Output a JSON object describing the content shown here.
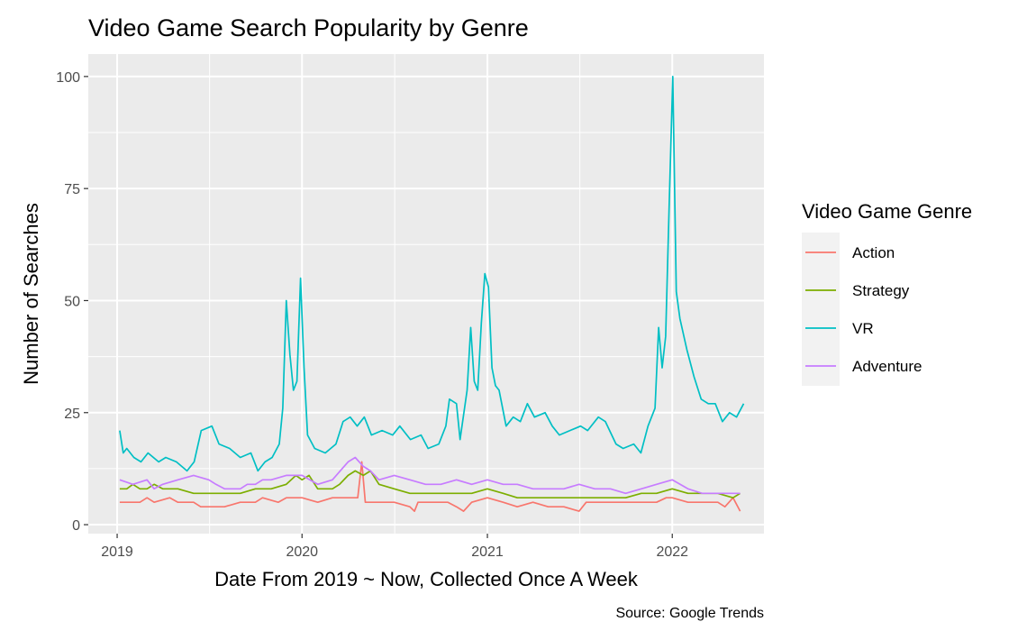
{
  "chart_data": {
    "type": "line",
    "title": "Video Game Search Popularity by Genre",
    "xlabel": "Date From 2019 ~ Now, Collected Once A Week",
    "ylabel": "Number of Searches",
    "caption": "Source: Google Trends",
    "legend_title": "Video Game Genre",
    "legend_position": "right",
    "grid": true,
    "xlim": [
      "2018-11-05",
      "2022-07-01"
    ],
    "ylim": [
      -2,
      105
    ],
    "x_ticks": [
      {
        "date": "2019-01-01",
        "label": "2019"
      },
      {
        "date": "2020-01-01",
        "label": "2020"
      },
      {
        "date": "2021-01-01",
        "label": "2021"
      },
      {
        "date": "2022-01-01",
        "label": "2022"
      }
    ],
    "y_ticks": [
      0,
      25,
      50,
      75,
      100
    ],
    "series": [
      {
        "name": "Action",
        "color": "#F8766D",
        "points": [
          [
            "2019-01-06",
            5
          ],
          [
            "2019-02-15",
            5
          ],
          [
            "2019-03-01",
            6
          ],
          [
            "2019-03-15",
            5
          ],
          [
            "2019-04-15",
            6
          ],
          [
            "2019-05-01",
            5
          ],
          [
            "2019-06-01",
            5
          ],
          [
            "2019-06-15",
            4
          ],
          [
            "2019-08-01",
            4
          ],
          [
            "2019-09-01",
            5
          ],
          [
            "2019-10-01",
            5
          ],
          [
            "2019-10-15",
            6
          ],
          [
            "2019-11-15",
            5
          ],
          [
            "2019-12-01",
            6
          ],
          [
            "2020-01-01",
            6
          ],
          [
            "2020-02-01",
            5
          ],
          [
            "2020-03-01",
            6
          ],
          [
            "2020-04-01",
            6
          ],
          [
            "2020-04-20",
            6
          ],
          [
            "2020-04-28",
            14
          ],
          [
            "2020-05-05",
            5
          ],
          [
            "2020-06-01",
            5
          ],
          [
            "2020-07-01",
            5
          ],
          [
            "2020-08-01",
            4
          ],
          [
            "2020-08-10",
            3
          ],
          [
            "2020-08-17",
            5
          ],
          [
            "2020-09-15",
            5
          ],
          [
            "2020-10-15",
            5
          ],
          [
            "2020-11-01",
            4
          ],
          [
            "2020-11-15",
            3
          ],
          [
            "2020-12-01",
            5
          ],
          [
            "2021-01-01",
            6
          ],
          [
            "2021-02-01",
            5
          ],
          [
            "2021-03-01",
            4
          ],
          [
            "2021-04-01",
            5
          ],
          [
            "2021-05-01",
            4
          ],
          [
            "2021-06-01",
            4
          ],
          [
            "2021-07-01",
            3
          ],
          [
            "2021-07-15",
            5
          ],
          [
            "2021-08-01",
            5
          ],
          [
            "2021-09-01",
            5
          ],
          [
            "2021-10-01",
            5
          ],
          [
            "2021-11-01",
            5
          ],
          [
            "2021-12-01",
            5
          ],
          [
            "2021-12-20",
            6
          ],
          [
            "2022-01-01",
            6
          ],
          [
            "2022-02-01",
            5
          ],
          [
            "2022-03-01",
            5
          ],
          [
            "2022-04-01",
            5
          ],
          [
            "2022-04-15",
            4
          ],
          [
            "2022-05-01",
            6
          ],
          [
            "2022-05-15",
            3
          ]
        ]
      },
      {
        "name": "Strategy",
        "color": "#7CAE00",
        "points": [
          [
            "2019-01-06",
            8
          ],
          [
            "2019-01-20",
            8
          ],
          [
            "2019-02-01",
            9
          ],
          [
            "2019-02-15",
            8
          ],
          [
            "2019-03-01",
            8
          ],
          [
            "2019-03-15",
            9
          ],
          [
            "2019-04-01",
            8
          ],
          [
            "2019-05-01",
            8
          ],
          [
            "2019-06-01",
            7
          ],
          [
            "2019-07-01",
            7
          ],
          [
            "2019-08-01",
            7
          ],
          [
            "2019-09-01",
            7
          ],
          [
            "2019-10-01",
            8
          ],
          [
            "2019-11-01",
            8
          ],
          [
            "2019-12-01",
            9
          ],
          [
            "2019-12-20",
            11
          ],
          [
            "2020-01-01",
            10
          ],
          [
            "2020-01-15",
            11
          ],
          [
            "2020-02-01",
            8
          ],
          [
            "2020-03-01",
            8
          ],
          [
            "2020-03-15",
            9
          ],
          [
            "2020-04-01",
            11
          ],
          [
            "2020-04-15",
            12
          ],
          [
            "2020-05-01",
            11
          ],
          [
            "2020-05-15",
            12
          ],
          [
            "2020-06-01",
            9
          ],
          [
            "2020-07-01",
            8
          ],
          [
            "2020-08-01",
            7
          ],
          [
            "2020-09-01",
            7
          ],
          [
            "2020-10-01",
            7
          ],
          [
            "2020-11-01",
            7
          ],
          [
            "2020-12-01",
            7
          ],
          [
            "2021-01-01",
            8
          ],
          [
            "2021-02-01",
            7
          ],
          [
            "2021-03-01",
            6
          ],
          [
            "2021-04-01",
            6
          ],
          [
            "2021-05-01",
            6
          ],
          [
            "2021-06-01",
            6
          ],
          [
            "2021-07-01",
            6
          ],
          [
            "2021-08-01",
            6
          ],
          [
            "2021-09-01",
            6
          ],
          [
            "2021-10-01",
            6
          ],
          [
            "2021-11-01",
            7
          ],
          [
            "2021-12-01",
            7
          ],
          [
            "2022-01-01",
            8
          ],
          [
            "2022-02-01",
            7
          ],
          [
            "2022-03-01",
            7
          ],
          [
            "2022-04-01",
            7
          ],
          [
            "2022-05-01",
            6
          ],
          [
            "2022-05-15",
            7
          ]
        ]
      },
      {
        "name": "VR",
        "color": "#00BFC4",
        "points": [
          [
            "2019-01-06",
            21
          ],
          [
            "2019-01-13",
            16
          ],
          [
            "2019-01-20",
            17
          ],
          [
            "2019-02-03",
            15
          ],
          [
            "2019-02-17",
            14
          ],
          [
            "2019-03-03",
            16
          ],
          [
            "2019-03-24",
            14
          ],
          [
            "2019-04-07",
            15
          ],
          [
            "2019-04-28",
            14
          ],
          [
            "2019-05-19",
            12
          ],
          [
            "2019-06-02",
            14
          ],
          [
            "2019-06-16",
            21
          ],
          [
            "2019-07-07",
            22
          ],
          [
            "2019-07-21",
            18
          ],
          [
            "2019-08-11",
            17
          ],
          [
            "2019-09-01",
            15
          ],
          [
            "2019-09-22",
            16
          ],
          [
            "2019-10-06",
            12
          ],
          [
            "2019-10-20",
            14
          ],
          [
            "2019-11-03",
            15
          ],
          [
            "2019-11-17",
            18
          ],
          [
            "2019-11-24",
            26
          ],
          [
            "2019-12-01",
            50
          ],
          [
            "2019-12-08",
            38
          ],
          [
            "2019-12-15",
            30
          ],
          [
            "2019-12-22",
            32
          ],
          [
            "2019-12-29",
            55
          ],
          [
            "2020-01-05",
            35
          ],
          [
            "2020-01-12",
            20
          ],
          [
            "2020-01-26",
            17
          ],
          [
            "2020-02-16",
            16
          ],
          [
            "2020-03-08",
            18
          ],
          [
            "2020-03-22",
            23
          ],
          [
            "2020-04-05",
            24
          ],
          [
            "2020-04-19",
            22
          ],
          [
            "2020-05-03",
            24
          ],
          [
            "2020-05-17",
            20
          ],
          [
            "2020-06-07",
            21
          ],
          [
            "2020-06-28",
            20
          ],
          [
            "2020-07-12",
            22
          ],
          [
            "2020-08-02",
            19
          ],
          [
            "2020-08-23",
            20
          ],
          [
            "2020-09-06",
            17
          ],
          [
            "2020-09-27",
            18
          ],
          [
            "2020-10-11",
            22
          ],
          [
            "2020-10-18",
            28
          ],
          [
            "2020-11-01",
            27
          ],
          [
            "2020-11-08",
            19
          ],
          [
            "2020-11-22",
            30
          ],
          [
            "2020-11-29",
            44
          ],
          [
            "2020-12-06",
            32
          ],
          [
            "2020-12-13",
            30
          ],
          [
            "2020-12-20",
            45
          ],
          [
            "2020-12-27",
            56
          ],
          [
            "2021-01-03",
            53
          ],
          [
            "2021-01-10",
            35
          ],
          [
            "2021-01-17",
            31
          ],
          [
            "2021-01-24",
            30
          ],
          [
            "2021-02-07",
            22
          ],
          [
            "2021-02-21",
            24
          ],
          [
            "2021-03-07",
            23
          ],
          [
            "2021-03-21",
            27
          ],
          [
            "2021-04-04",
            24
          ],
          [
            "2021-04-25",
            25
          ],
          [
            "2021-05-09",
            22
          ],
          [
            "2021-05-23",
            20
          ],
          [
            "2021-06-13",
            21
          ],
          [
            "2021-07-04",
            22
          ],
          [
            "2021-07-18",
            21
          ],
          [
            "2021-08-08",
            24
          ],
          [
            "2021-08-22",
            23
          ],
          [
            "2021-09-12",
            18
          ],
          [
            "2021-09-26",
            17
          ],
          [
            "2021-10-17",
            18
          ],
          [
            "2021-10-31",
            16
          ],
          [
            "2021-11-14",
            22
          ],
          [
            "2021-11-28",
            26
          ],
          [
            "2021-12-05",
            44
          ],
          [
            "2021-12-12",
            35
          ],
          [
            "2021-12-19",
            42
          ],
          [
            "2021-12-26",
            72
          ],
          [
            "2022-01-02",
            100
          ],
          [
            "2022-01-09",
            52
          ],
          [
            "2022-01-16",
            46
          ],
          [
            "2022-01-30",
            39
          ],
          [
            "2022-02-13",
            33
          ],
          [
            "2022-02-27",
            28
          ],
          [
            "2022-03-13",
            27
          ],
          [
            "2022-03-27",
            27
          ],
          [
            "2022-04-10",
            23
          ],
          [
            "2022-04-24",
            25
          ],
          [
            "2022-05-08",
            24
          ],
          [
            "2022-05-22",
            27
          ]
        ]
      },
      {
        "name": "Adventure",
        "color": "#C77CFF",
        "points": [
          [
            "2019-01-06",
            10
          ],
          [
            "2019-02-01",
            9
          ],
          [
            "2019-03-01",
            10
          ],
          [
            "2019-03-15",
            8
          ],
          [
            "2019-04-01",
            9
          ],
          [
            "2019-05-01",
            10
          ],
          [
            "2019-06-01",
            11
          ],
          [
            "2019-07-01",
            10
          ],
          [
            "2019-07-15",
            9
          ],
          [
            "2019-08-01",
            8
          ],
          [
            "2019-09-01",
            8
          ],
          [
            "2019-09-15",
            9
          ],
          [
            "2019-10-01",
            9
          ],
          [
            "2019-10-15",
            10
          ],
          [
            "2019-11-01",
            10
          ],
          [
            "2019-12-01",
            11
          ],
          [
            "2020-01-01",
            11
          ],
          [
            "2020-02-01",
            9
          ],
          [
            "2020-03-01",
            10
          ],
          [
            "2020-04-01",
            14
          ],
          [
            "2020-04-15",
            15
          ],
          [
            "2020-05-01",
            13
          ],
          [
            "2020-05-15",
            12
          ],
          [
            "2020-06-01",
            10
          ],
          [
            "2020-07-01",
            11
          ],
          [
            "2020-08-01",
            10
          ],
          [
            "2020-09-01",
            9
          ],
          [
            "2020-10-01",
            9
          ],
          [
            "2020-11-01",
            10
          ],
          [
            "2020-12-01",
            9
          ],
          [
            "2021-01-01",
            10
          ],
          [
            "2021-02-01",
            9
          ],
          [
            "2021-03-01",
            9
          ],
          [
            "2021-04-01",
            8
          ],
          [
            "2021-05-01",
            8
          ],
          [
            "2021-06-01",
            8
          ],
          [
            "2021-07-01",
            9
          ],
          [
            "2021-08-01",
            8
          ],
          [
            "2021-09-01",
            8
          ],
          [
            "2021-10-01",
            7
          ],
          [
            "2021-11-01",
            8
          ],
          [
            "2021-12-01",
            9
          ],
          [
            "2022-01-01",
            10
          ],
          [
            "2022-02-01",
            8
          ],
          [
            "2022-03-01",
            7
          ],
          [
            "2022-04-01",
            7
          ],
          [
            "2022-05-01",
            7
          ],
          [
            "2022-05-15",
            7
          ]
        ]
      }
    ]
  }
}
